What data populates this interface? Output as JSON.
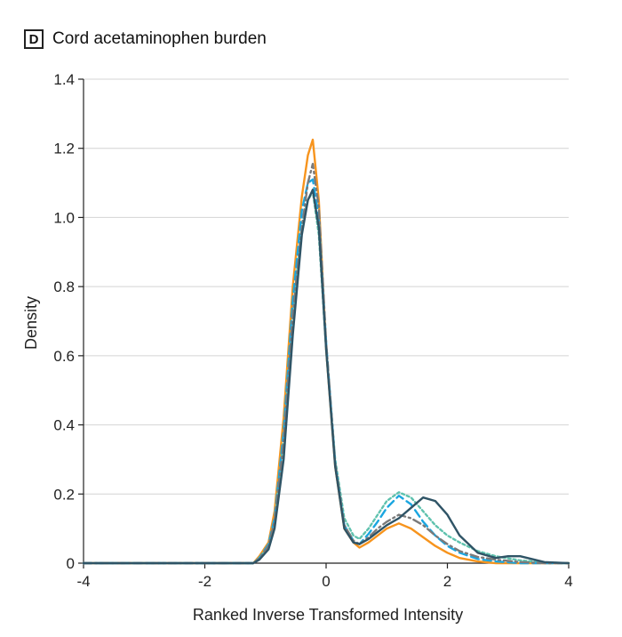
{
  "panel": {
    "letter": "D",
    "title": "Cord acetaminophen burden"
  },
  "chart_data": {
    "type": "line",
    "title": "Cord acetaminophen burden",
    "xlabel": "Ranked Inverse Transformed Intensity",
    "ylabel": "Density",
    "xlim": [
      -4,
      4
    ],
    "ylim": [
      0,
      1.4
    ],
    "xticks": [
      -4,
      -2,
      0,
      2,
      4
    ],
    "xtick_labels": [
      "-4",
      "-2",
      "0",
      "2",
      "4"
    ],
    "yticks": [
      0,
      0.2,
      0.4,
      0.6,
      0.8,
      1.0,
      1.2,
      1.4
    ],
    "ytick_labels": [
      "0",
      "0.2",
      "0.4",
      "0.6",
      "0.8",
      "1.0",
      "1.2",
      "1.4"
    ],
    "grid": "horizontal",
    "series": [
      {
        "name": "orange-solid",
        "color": "#F7941D",
        "style": "solid",
        "x": [
          -4,
          -1.2,
          -1.1,
          -0.95,
          -0.85,
          -0.7,
          -0.55,
          -0.4,
          -0.3,
          -0.22,
          -0.12,
          0,
          0.15,
          0.3,
          0.45,
          0.55,
          0.7,
          0.85,
          1.0,
          1.2,
          1.4,
          1.6,
          1.8,
          2.0,
          2.2,
          2.5,
          2.8,
          3.2,
          3.6,
          4
        ],
        "values": [
          0,
          0,
          0.02,
          0.06,
          0.15,
          0.42,
          0.8,
          1.06,
          1.18,
          1.225,
          1.05,
          0.62,
          0.28,
          0.1,
          0.06,
          0.045,
          0.06,
          0.08,
          0.1,
          0.115,
          0.1,
          0.075,
          0.05,
          0.03,
          0.015,
          0.005,
          0,
          0,
          0,
          0
        ]
      },
      {
        "name": "teal-dotted",
        "color": "#5FC2AE",
        "style": "dotted",
        "x": [
          -4,
          -1.2,
          -1.1,
          -0.95,
          -0.85,
          -0.7,
          -0.55,
          -0.4,
          -0.3,
          -0.22,
          -0.12,
          0,
          0.15,
          0.3,
          0.45,
          0.55,
          0.7,
          0.85,
          1.0,
          1.2,
          1.4,
          1.6,
          1.8,
          2.0,
          2.2,
          2.5,
          2.8,
          3.2,
          3.6,
          4
        ],
        "values": [
          0,
          0,
          0.015,
          0.05,
          0.12,
          0.36,
          0.72,
          0.98,
          1.05,
          1.075,
          0.95,
          0.62,
          0.3,
          0.13,
          0.08,
          0.07,
          0.1,
          0.14,
          0.18,
          0.205,
          0.19,
          0.15,
          0.11,
          0.08,
          0.06,
          0.035,
          0.02,
          0.008,
          0.002,
          0
        ]
      },
      {
        "name": "blue-dashed",
        "color": "#1BA6E0",
        "style": "dashed",
        "x": [
          -4,
          -1.2,
          -1.1,
          -0.95,
          -0.85,
          -0.7,
          -0.55,
          -0.4,
          -0.3,
          -0.22,
          -0.12,
          0,
          0.15,
          0.3,
          0.45,
          0.55,
          0.7,
          0.85,
          1.0,
          1.2,
          1.4,
          1.6,
          1.8,
          2.0,
          2.2,
          2.5,
          2.8,
          3.2,
          3.6,
          4
        ],
        "values": [
          0,
          0,
          0.015,
          0.055,
          0.13,
          0.38,
          0.76,
          1.02,
          1.1,
          1.11,
          1.0,
          0.64,
          0.29,
          0.11,
          0.065,
          0.055,
          0.085,
          0.12,
          0.16,
          0.195,
          0.17,
          0.12,
          0.08,
          0.05,
          0.03,
          0.012,
          0.005,
          0,
          0,
          0
        ]
      },
      {
        "name": "gray-dashdot",
        "color": "#7A7A7A",
        "style": "dashdot",
        "x": [
          -4,
          -1.2,
          -1.1,
          -0.95,
          -0.85,
          -0.7,
          -0.55,
          -0.4,
          -0.3,
          -0.22,
          -0.12,
          0,
          0.15,
          0.3,
          0.45,
          0.55,
          0.7,
          0.85,
          1.0,
          1.2,
          1.4,
          1.6,
          1.8,
          2.0,
          2.2,
          2.5,
          2.8,
          3.2,
          3.6,
          4
        ],
        "values": [
          0,
          0,
          0.013,
          0.05,
          0.12,
          0.35,
          0.72,
          0.97,
          1.1,
          1.155,
          1.03,
          0.64,
          0.29,
          0.11,
          0.065,
          0.055,
          0.075,
          0.1,
          0.12,
          0.14,
          0.13,
          0.11,
          0.08,
          0.055,
          0.035,
          0.018,
          0.01,
          0.003,
          0,
          0
        ]
      },
      {
        "name": "darkslate-solid",
        "color": "#2F5466",
        "style": "solid",
        "x": [
          -4,
          -1.2,
          -1.1,
          -0.95,
          -0.85,
          -0.7,
          -0.55,
          -0.4,
          -0.3,
          -0.22,
          -0.12,
          0,
          0.15,
          0.3,
          0.45,
          0.55,
          0.7,
          0.85,
          1.0,
          1.2,
          1.4,
          1.6,
          1.8,
          2.0,
          2.2,
          2.5,
          2.8,
          3.0,
          3.2,
          3.6,
          4
        ],
        "values": [
          0,
          0,
          0.01,
          0.04,
          0.1,
          0.3,
          0.66,
          0.95,
          1.05,
          1.08,
          0.97,
          0.62,
          0.28,
          0.1,
          0.06,
          0.055,
          0.07,
          0.09,
          0.11,
          0.13,
          0.16,
          0.19,
          0.18,
          0.14,
          0.08,
          0.03,
          0.015,
          0.02,
          0.02,
          0.003,
          0
        ]
      }
    ]
  }
}
